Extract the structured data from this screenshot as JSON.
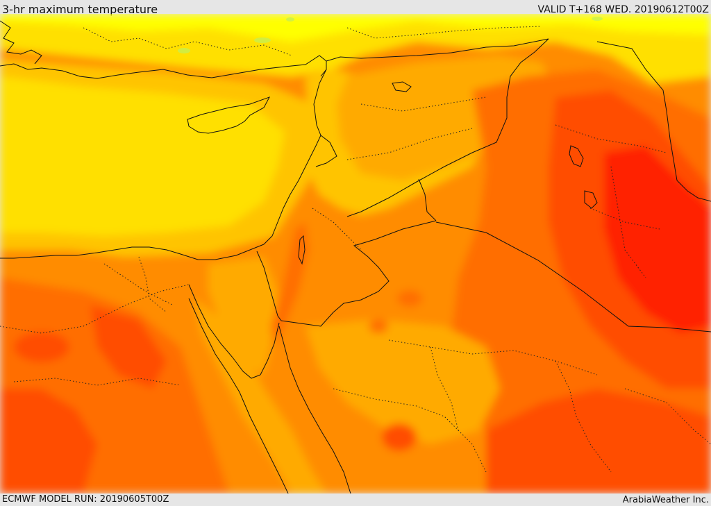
{
  "header": {
    "title": "3-hr maximum temperature",
    "valid_time": "VALID T+168 WED. 20190612T00Z"
  },
  "footer": {
    "model_run": "ECMWF MODEL RUN: 20190605T00Z",
    "credit": "ArabiaWeather Inc."
  },
  "palette": {
    "light_yellow": "#ffff00",
    "yellow": "#ffe000",
    "yellow_orange": "#ffc400",
    "light_orange": "#ffaa00",
    "orange": "#ff8c00",
    "dark_orange": "#ff6e00",
    "red_orange": "#ff4e00",
    "red": "#ff2400",
    "green_patch": "#c8f050"
  }
}
